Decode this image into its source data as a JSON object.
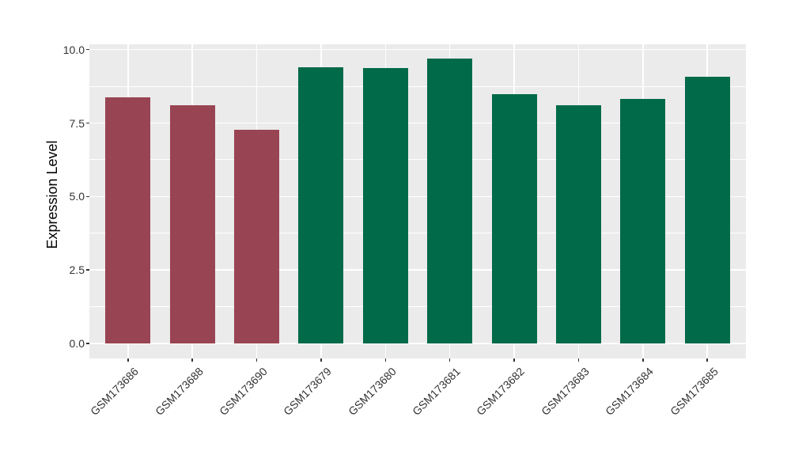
{
  "chart_data": {
    "type": "bar",
    "title": "",
    "xlabel": "",
    "ylabel": "Expression Level",
    "categories": [
      "GSM173686",
      "GSM173688",
      "GSM173690",
      "GSM173679",
      "GSM173680",
      "GSM173681",
      "GSM173682",
      "GSM173683",
      "GSM173684",
      "GSM173685"
    ],
    "values": [
      8.37,
      8.1,
      7.26,
      9.41,
      9.36,
      9.69,
      8.49,
      8.12,
      8.31,
      9.07
    ],
    "groups": [
      "groupA",
      "groupA",
      "groupA",
      "groupB",
      "groupB",
      "groupB",
      "groupB",
      "groupB",
      "groupB",
      "groupB"
    ],
    "group_colors": {
      "groupA": "#994452",
      "groupB": "#016A49"
    },
    "y_tick_labels": [
      "0.0",
      "2.5",
      "5.0",
      "7.5",
      "10.0"
    ],
    "y_tick_values": [
      0,
      2.5,
      5,
      7.5,
      10
    ],
    "y_minor_tick_values": [
      1.25,
      3.75,
      6.25,
      8.75
    ],
    "ylim": [
      -0.51,
      10.18
    ],
    "bar_width_fraction": 0.7,
    "grid": true,
    "legend_position": "none",
    "styles": {
      "panel_background": "#EBEBEB",
      "grid_color": "#FFFFFF",
      "axis_text_color": "#333333",
      "axis_title_color": "#000000",
      "tick_mark_color": "#333333",
      "figure_background": "#FFFFFF"
    }
  }
}
